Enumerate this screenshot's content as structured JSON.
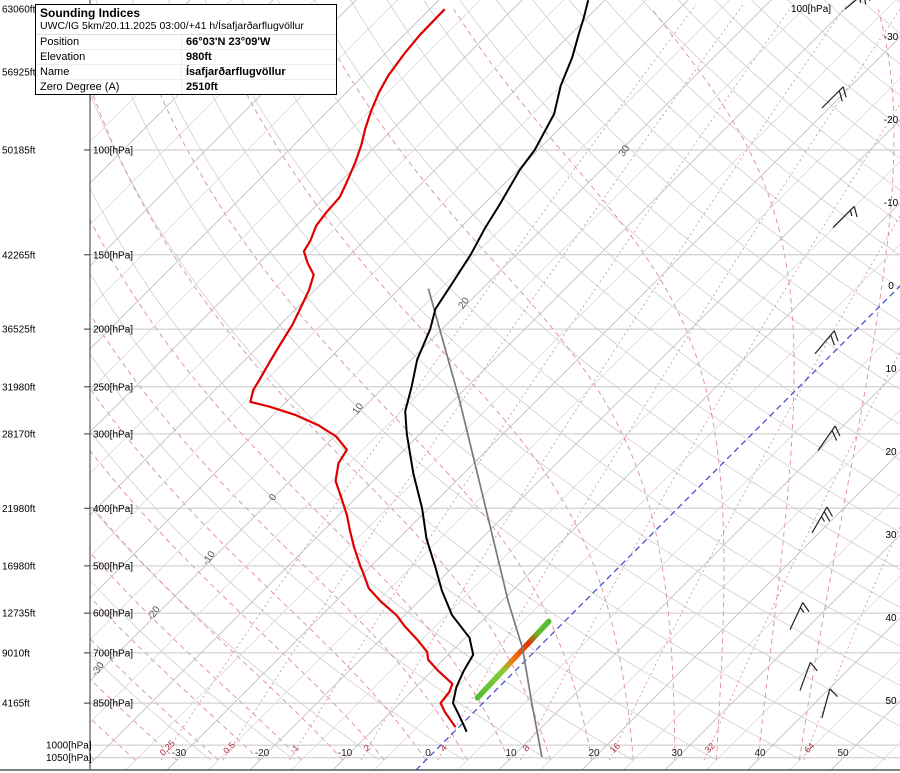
{
  "chart_data": {
    "type": "skewt",
    "title": "Sounding Indices",
    "info_box": {
      "title": "Sounding Indices",
      "subtitle": "UWC/IG 5km/20.11.2025 03:00/+41 h/Ísafjarðarflugvöllur",
      "rows": [
        {
          "label": "Position",
          "value": "66°03'N 23°09'W"
        },
        {
          "label": "Elevation",
          "value": "980ft"
        },
        {
          "label": "Name",
          "value": "Ísafjarðarflugvöllur"
        },
        {
          "label": "Zero Degree (A)",
          "value": "2510ft"
        }
      ]
    },
    "axes": {
      "pressure_levels": [
        {
          "ft": "63060ft",
          "hpa": "",
          "p": 58
        },
        {
          "ft": "56925ft",
          "hpa": "",
          "p": 74
        },
        {
          "ft": "50185ft",
          "hpa": "100[hPa]",
          "p": 100
        },
        {
          "ft": "42265ft",
          "hpa": "150[hPa]",
          "p": 150
        },
        {
          "ft": "36525ft",
          "hpa": "200[hPa]",
          "p": 200
        },
        {
          "ft": "31980ft",
          "hpa": "250[hPa]",
          "p": 250
        },
        {
          "ft": "28170ft",
          "hpa": "300[hPa]",
          "p": 300
        },
        {
          "ft": "21980ft",
          "hpa": "400[hPa]",
          "p": 400
        },
        {
          "ft": "16980ft",
          "hpa": "500[hPa]",
          "p": 500
        },
        {
          "ft": "12735ft",
          "hpa": "600[hPa]",
          "p": 600
        },
        {
          "ft": "9010ft",
          "hpa": "700[hPa]",
          "p": 700
        },
        {
          "ft": "4165ft",
          "hpa": "850[hPa]",
          "p": 850
        }
      ],
      "bottom_pressure_labels": [
        {
          "text": "1000[hPa]",
          "p": 1000
        },
        {
          "text": "1050[hPa]",
          "p": 1050
        }
      ],
      "top_right_label": "100[hPa]",
      "right_temp_labels": [
        -30,
        -20,
        -10,
        0,
        10,
        20,
        30,
        40,
        50
      ],
      "bottom_temp_labels": [
        -30,
        -20,
        -10,
        0,
        10,
        20,
        30,
        40,
        50
      ],
      "mixing_ratio_labels": [
        0.25,
        0.5,
        1,
        2,
        4,
        8,
        16,
        32,
        64
      ],
      "temp_unit": "°C"
    },
    "grid": {
      "isotherm_min": -120,
      "isotherm_max": 60,
      "isotherm_step": 5,
      "dry_theta_min": -30,
      "dry_theta_max": 280,
      "dry_theta_step": 10,
      "moist_min": -40,
      "moist_max": 45,
      "moist_step": 5,
      "zero_isotherm_t": 0,
      "isobars": [
        100,
        150,
        200,
        250,
        300,
        400,
        500,
        600,
        700,
        850,
        1000,
        1050
      ]
    },
    "series": {
      "temperature": [
        [
          1.5,
          950
        ],
        [
          0.3,
          925
        ],
        [
          -1.2,
          895
        ],
        [
          -3.6,
          850
        ],
        [
          -5.1,
          800
        ],
        [
          -6.2,
          750
        ],
        [
          -7.0,
          705
        ],
        [
          -9.5,
          660
        ],
        [
          -14.3,
          605
        ],
        [
          -18.5,
          550
        ],
        [
          -22.3,
          500
        ],
        [
          -26.6,
          450
        ],
        [
          -30.8,
          400
        ],
        [
          -36.0,
          350
        ],
        [
          -41.6,
          300
        ],
        [
          -44.5,
          275
        ],
        [
          -46.7,
          250
        ],
        [
          -49.3,
          225
        ],
        [
          -51.4,
          200
        ],
        [
          -53.2,
          185
        ],
        [
          -54.1,
          170
        ],
        [
          -55.5,
          150
        ],
        [
          -57.0,
          135
        ],
        [
          -58.0,
          124
        ],
        [
          -59.8,
          108
        ],
        [
          -60.4,
          100
        ],
        [
          -62.4,
          87
        ],
        [
          -65.0,
          78
        ],
        [
          -67.0,
          70
        ],
        [
          -69.0,
          64
        ],
        [
          -70.4,
          60
        ],
        [
          -72.0,
          56
        ]
      ],
      "dewpoint": [
        [
          -0.4,
          933
        ],
        [
          -3.5,
          880
        ],
        [
          -5.1,
          850
        ],
        [
          -5.4,
          814
        ],
        [
          -6.0,
          789
        ],
        [
          -9.3,
          750
        ],
        [
          -11.8,
          719
        ],
        [
          -12.9,
          697
        ],
        [
          -15.3,
          668
        ],
        [
          -18.8,
          630
        ],
        [
          -20.9,
          606
        ],
        [
          -24.5,
          574
        ],
        [
          -27.6,
          545
        ],
        [
          -29.9,
          516
        ],
        [
          -31.3,
          500
        ],
        [
          -34.3,
          465
        ],
        [
          -36.9,
          435
        ],
        [
          -39.0,
          411
        ],
        [
          -41.8,
          384
        ],
        [
          -44.5,
          360
        ],
        [
          -46.3,
          336
        ],
        [
          -46.9,
          319
        ],
        [
          -49.8,
          303
        ],
        [
          -53.3,
          290
        ],
        [
          -57.2,
          279
        ],
        [
          -61.4,
          270
        ],
        [
          -64.3,
          265
        ],
        [
          -65.4,
          253
        ],
        [
          -65.9,
          243
        ],
        [
          -66.9,
          225
        ],
        [
          -67.7,
          211
        ],
        [
          -68.5,
          197
        ],
        [
          -69.6,
          184
        ],
        [
          -70.7,
          172
        ],
        [
          -72.0,
          162
        ],
        [
          -74.1,
          155
        ],
        [
          -76.0,
          148
        ],
        [
          -76.5,
          142
        ],
        [
          -77.6,
          134
        ],
        [
          -78.0,
          127
        ],
        [
          -78.2,
          120
        ],
        [
          -79.2,
          113
        ],
        [
          -80.5,
          105
        ],
        [
          -81.9,
          98
        ],
        [
          -83.4,
          92
        ],
        [
          -84.8,
          86
        ],
        [
          -86.1,
          80
        ],
        [
          -87.0,
          75
        ],
        [
          -87.7,
          69
        ],
        [
          -88.1,
          64
        ],
        [
          -88.2,
          58
        ]
      ],
      "parcel": [
        [
          13.6,
          1047
        ],
        [
          5.5,
          841
        ],
        [
          -1.8,
          688
        ],
        [
          -9.1,
          575
        ],
        [
          -24.3,
          388
        ],
        [
          -39.5,
          262
        ],
        [
          -56.5,
          171
        ]
      ],
      "freezing_layer": {
        "from": [
          -1.3,
          833
        ],
        "to": [
          -1.9,
          620
        ],
        "gradient_stops": [
          {
            "o": 0,
            "c": "#55bb33"
          },
          {
            "o": 0.35,
            "c": "#88cc33"
          },
          {
            "o": 0.5,
            "c": "#ee7711"
          },
          {
            "o": 0.72,
            "c": "#dd3300"
          },
          {
            "o": 0.85,
            "c": "#66bb33"
          },
          {
            "o": 1,
            "c": "#55bb33"
          }
        ]
      }
    },
    "moist_adiabat_inline_labels": [
      {
        "text": "-30",
        "t": -50,
        "p": 750
      },
      {
        "text": "-20",
        "t": -50,
        "p": 604
      },
      {
        "text": "-10",
        "t": -50,
        "p": 488
      },
      {
        "text": "0",
        "t": -49.6,
        "p": 386
      },
      {
        "text": "10",
        "t": -50,
        "p": 274
      },
      {
        "text": "20",
        "t": -50,
        "p": 182
      },
      {
        "text": "30",
        "t": -49,
        "p": 101
      }
    ],
    "wind_barbs": [
      {
        "p": 58,
        "x": 845,
        "dir": 50,
        "spd": 25
      },
      {
        "p": 85,
        "x": 822,
        "dir": 45,
        "spd": 20
      },
      {
        "p": 135,
        "x": 833,
        "dir": 45,
        "spd": 15
      },
      {
        "p": 220,
        "x": 815,
        "dir": 40,
        "spd": 20
      },
      {
        "p": 320,
        "x": 818,
        "dir": 35,
        "spd": 20
      },
      {
        "p": 440,
        "x": 812,
        "dir": 30,
        "spd": 25
      },
      {
        "p": 640,
        "x": 790,
        "dir": 25,
        "spd": 15
      },
      {
        "p": 810,
        "x": 800,
        "dir": 20,
        "spd": 10
      },
      {
        "p": 900,
        "x": 822,
        "dir": 15,
        "spd": 10
      }
    ],
    "colors": {
      "temperature": "#000000",
      "dewpoint": "#e10000",
      "parcel": "#7a7a7a",
      "isotherm": "#c2c2c2",
      "isotherm_minor": "#d4d4d4",
      "isobar": "#c6c6c6",
      "dry_adiabat": "#cfcfcf",
      "moist_adiabat": "#d4667a",
      "mixing_ratio": "#cc7788",
      "zero_isotherm": "#4040d8",
      "barb": "#222222",
      "axis": "#333333",
      "label": "#000000",
      "inline_label": "#555555",
      "mixing_label": "#aa3344"
    }
  }
}
